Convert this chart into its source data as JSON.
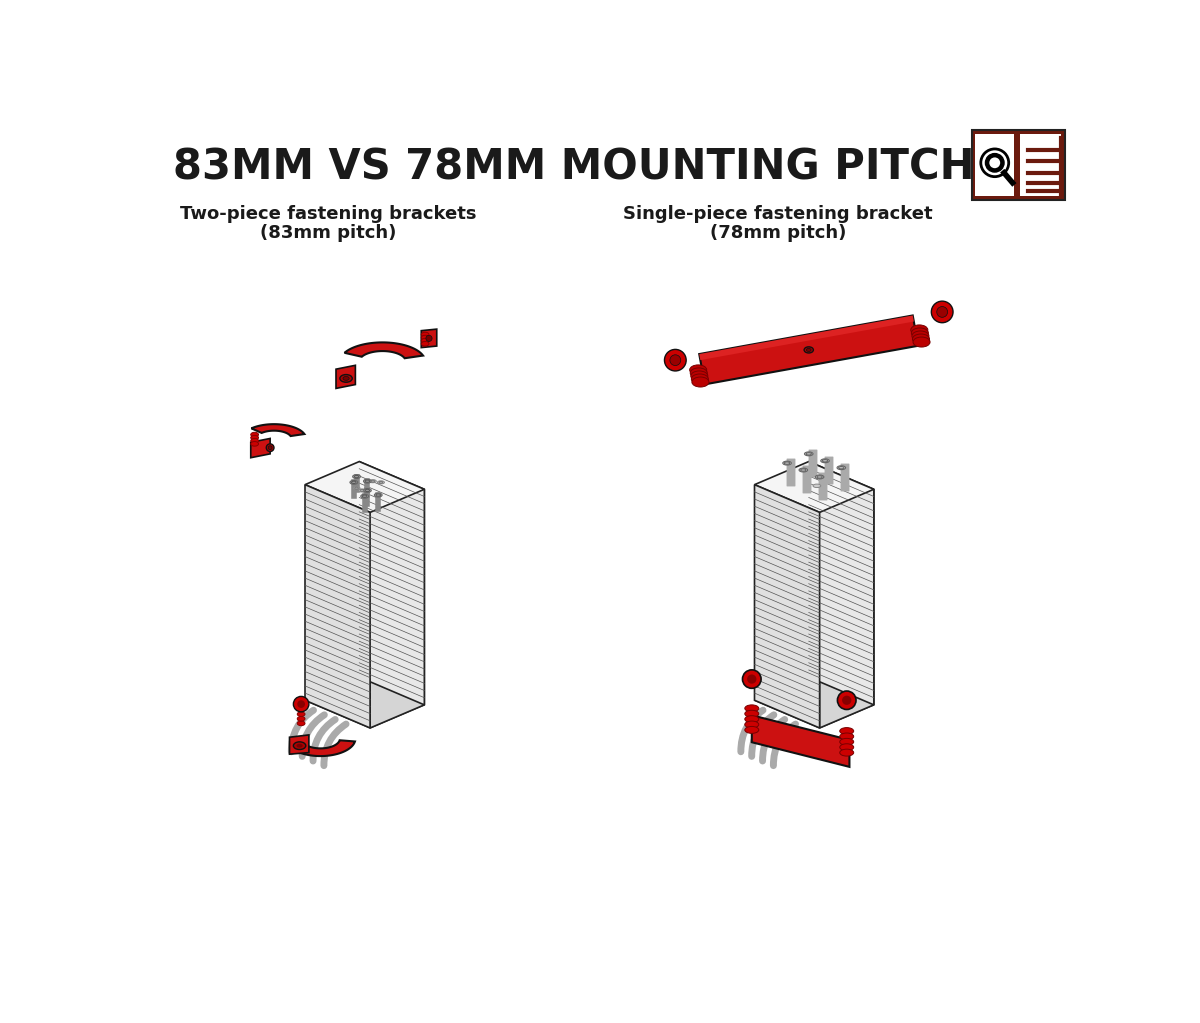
{
  "title": "83MM VS 78MM MOUNTING PITCH:",
  "title_fontsize": 30,
  "title_weight": "bold",
  "bg_color": "#ffffff",
  "text_color": "#1a1a1a",
  "red_color": "#cc1111",
  "label_left_line1": "Two-piece fastening brackets",
  "label_left_line2": "(83mm pitch)",
  "label_right_line1": "Single-piece fastening bracket",
  "label_right_line2": "(78mm pitch)",
  "label_fontsize": 13,
  "label_weight": "bold",
  "logo_bg": "#6b1a0e"
}
